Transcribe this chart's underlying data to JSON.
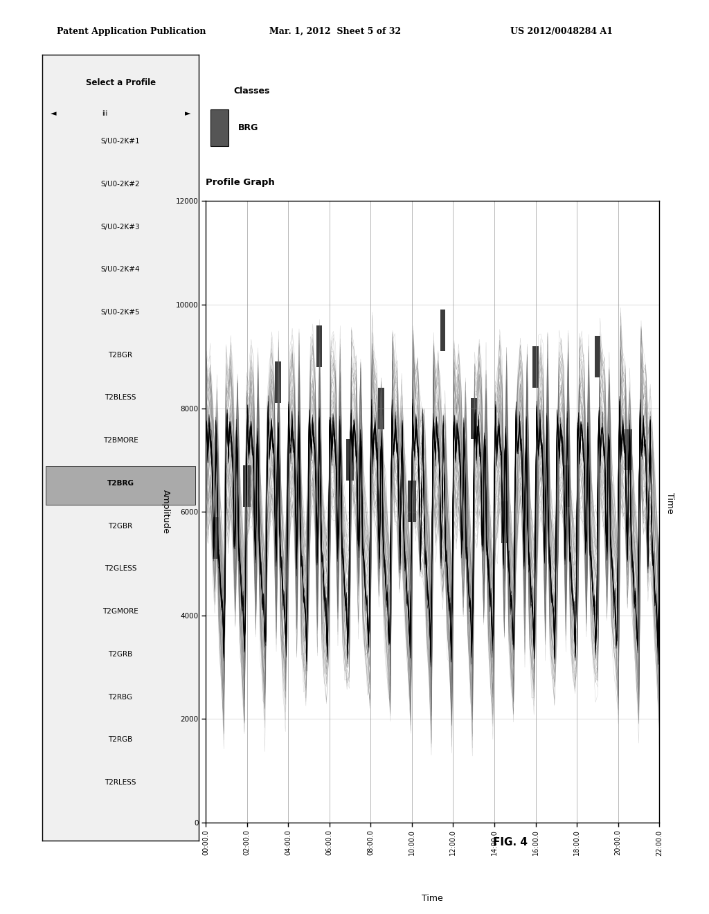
{
  "header_left": "Patent Application Publication",
  "header_center": "Mar. 1, 2012  Sheet 5 of 32",
  "header_right": "US 2012/0048284 A1",
  "figure_label": "FIG. 4",
  "panel_title": "Select a Profile",
  "panel_profiles": [
    "S/U0-2K#1",
    "S/U0-2K#2",
    "S/U0-2K#3",
    "S/U0-2K#4",
    "S/U0-2K#5",
    "T2BGR",
    "T2BLESS",
    "T2BMORE",
    "T2BRG",
    "T2GBR",
    "T2GLESS",
    "T2GMORE",
    "T2GRB",
    "T2RBG",
    "T2RGB",
    "T2RLESS"
  ],
  "selected_profile": "T2BRG",
  "classes_label": "Classes",
  "class_value": "BRG",
  "graph_title": "Profile Graph",
  "ylabel": "Amplitude",
  "xlabel": "Time",
  "y_ticks": [
    0,
    2000,
    4000,
    6000,
    8000,
    10000,
    12000
  ],
  "x_ticks": [
    "00:00.0",
    "02:00.0",
    "04:00.0",
    "06:00.0",
    "08:00.0",
    "10:00.0",
    "12:00.0",
    "14:00.0",
    "16:00.0",
    "18:00.0",
    "20:00.0",
    "22:00.0"
  ],
  "background_color": "#ffffff",
  "plot_bg": "#ffffff",
  "border_color": "#000000",
  "line_color_gray": "#888888",
  "line_color_black": "#000000",
  "highlight_color": "#333333"
}
